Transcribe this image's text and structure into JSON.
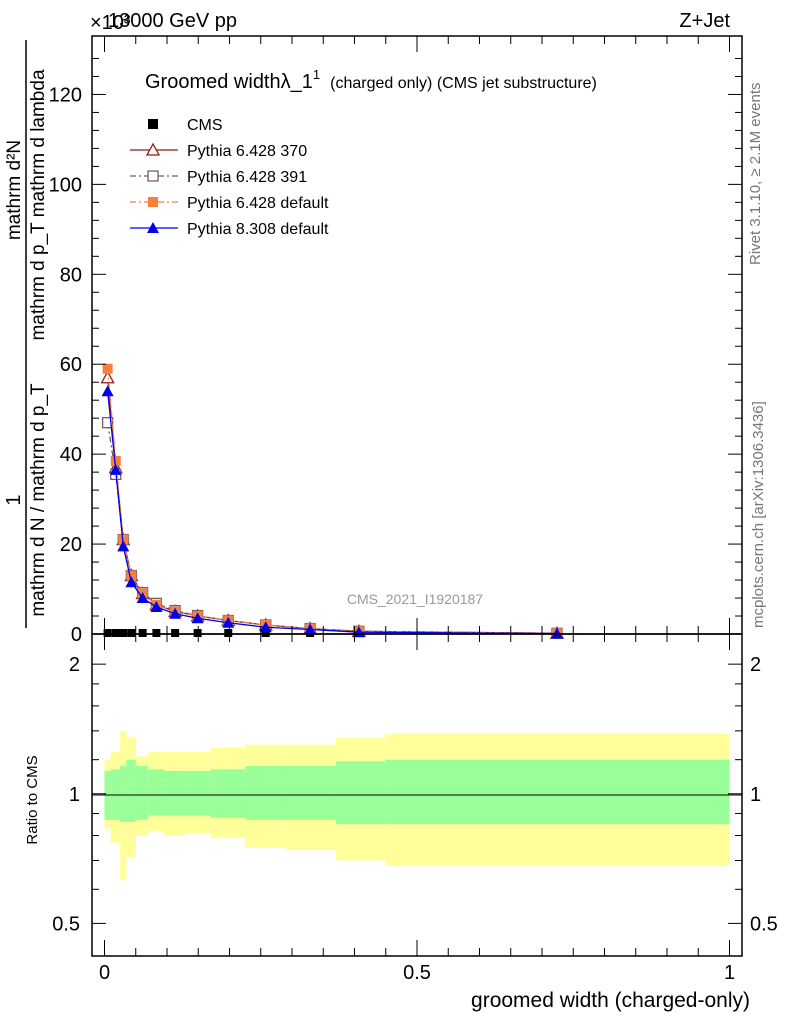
{
  "header": {
    "left": "13000 GeV pp",
    "right": "Z+Jet",
    "exponent": "×10³"
  },
  "side_labels": {
    "rivet": "Rivet 3.1.10, ≥ 2.1M events",
    "mcplots": "mcplots.cern.ch [arXiv:1306.3436]"
  },
  "watermark": "CMS_2021_I1920187",
  "plot_title": {
    "main": "Groomed widthλ_1",
    "sup": "1",
    "sub": "(charged only) (CMS jet substructure)"
  },
  "axes": {
    "main_ylabel_numerator": "mathrm d²N",
    "main_ylabel_denominator": "mathrm d p_T mathrm d lambda",
    "main_ylabel_left_num": "1",
    "main_ylabel_left_den": "mathrm d N / mathrm d p_T",
    "main_y_ticks": [
      "0",
      "20",
      "40",
      "60",
      "80",
      "100",
      "120"
    ],
    "ratio_ylabel": "Ratio to CMS",
    "ratio_y_ticks": [
      "0.5",
      "1",
      "2"
    ],
    "x_ticks": [
      "0",
      "0.5",
      "1"
    ],
    "xlabel": "groomed width (charged-only)"
  },
  "legend": [
    {
      "label": "CMS",
      "color": "#000000",
      "marker": "square-filled",
      "line": "none"
    },
    {
      "label": "Pythia 6.428 370",
      "color": "#8b1a1a",
      "marker": "triangle-open",
      "line": "solid"
    },
    {
      "label": "Pythia 6.428 391",
      "color": "#7a5a64",
      "marker": "square-open",
      "line": "dashdot"
    },
    {
      "label": "Pythia 6.428 default",
      "color": "#f5813a",
      "marker": "square-filled",
      "line": "dashdot"
    },
    {
      "label": "Pythia 8.308 default",
      "color": "#0000ee",
      "marker": "triangle-filled",
      "line": "solid"
    }
  ],
  "chart_data": {
    "type": "line",
    "title": "Groomed widthλ_1¹ (charged only) (CMS jet substructure)",
    "xlabel": "groomed width (charged-only)",
    "ylabel": "1 / (mathrm d N / mathrm d p_T) · mathrm d²N / (mathrm d p_T mathrm d lambda)",
    "xlim": [
      -0.02,
      1.02
    ],
    "ylim": [
      0,
      133
    ],
    "y_scale_factor": "×10³",
    "x": [
      0.005,
      0.018,
      0.03,
      0.043,
      0.061,
      0.083,
      0.113,
      0.149,
      0.198,
      0.258,
      0.329,
      0.407,
      0.724
    ],
    "series": [
      {
        "name": "CMS",
        "values": [
          0.0,
          0.0,
          0.0,
          0.0,
          0.0,
          0.0,
          0.0,
          0.0,
          0.0,
          0.0,
          0.0,
          0.0,
          0.0
        ]
      },
      {
        "name": "Pythia 6.428 370",
        "values": [
          57.0,
          37.0,
          21.0,
          13.0,
          9.0,
          6.5,
          5.0,
          4.0,
          3.0,
          2.0,
          1.2,
          0.6,
          0.15
        ]
      },
      {
        "name": "Pythia 6.428 391",
        "values": [
          47.0,
          35.5,
          21.0,
          13.0,
          9.2,
          6.8,
          5.2,
          4.1,
          3.0,
          2.0,
          1.2,
          0.6,
          0.15
        ]
      },
      {
        "name": "Pythia 6.428 default",
        "values": [
          59.0,
          38.5,
          21.0,
          13.0,
          9.0,
          6.5,
          5.0,
          4.0,
          3.0,
          2.0,
          1.2,
          0.6,
          0.15
        ]
      },
      {
        "name": "Pythia 8.308 default",
        "values": [
          54.0,
          36.5,
          19.5,
          11.5,
          8.0,
          6.0,
          4.5,
          3.5,
          2.5,
          1.5,
          1.0,
          0.4,
          0.1
        ]
      }
    ],
    "ratio_panel": {
      "ylabel": "Ratio to CMS",
      "scale": "log",
      "ylim": [
        0.42,
        2.35
      ],
      "bin_edges": [
        0.0,
        0.01,
        0.025,
        0.035,
        0.05,
        0.07,
        0.095,
        0.13,
        0.17,
        0.225,
        0.29,
        0.37,
        0.45,
        1.0
      ],
      "green_band": [
        [
          0.87,
          1.13
        ],
        [
          0.87,
          1.14
        ],
        [
          0.86,
          1.16
        ],
        [
          0.86,
          1.2
        ],
        [
          0.87,
          1.16
        ],
        [
          0.89,
          1.14
        ],
        [
          0.89,
          1.13
        ],
        [
          0.89,
          1.13
        ],
        [
          0.88,
          1.14
        ],
        [
          0.87,
          1.16
        ],
        [
          0.87,
          1.16
        ],
        [
          0.85,
          1.19
        ],
        [
          0.85,
          1.2
        ]
      ],
      "yellow_band": [
        [
          0.83,
          1.2
        ],
        [
          0.77,
          1.25
        ],
        [
          0.63,
          1.4
        ],
        [
          0.71,
          1.35
        ],
        [
          0.8,
          1.22
        ],
        [
          0.82,
          1.25
        ],
        [
          0.8,
          1.25
        ],
        [
          0.81,
          1.25
        ],
        [
          0.79,
          1.28
        ],
        [
          0.75,
          1.3
        ],
        [
          0.74,
          1.3
        ],
        [
          0.7,
          1.35
        ],
        [
          0.68,
          1.38
        ]
      ],
      "reference": 1.0
    }
  }
}
